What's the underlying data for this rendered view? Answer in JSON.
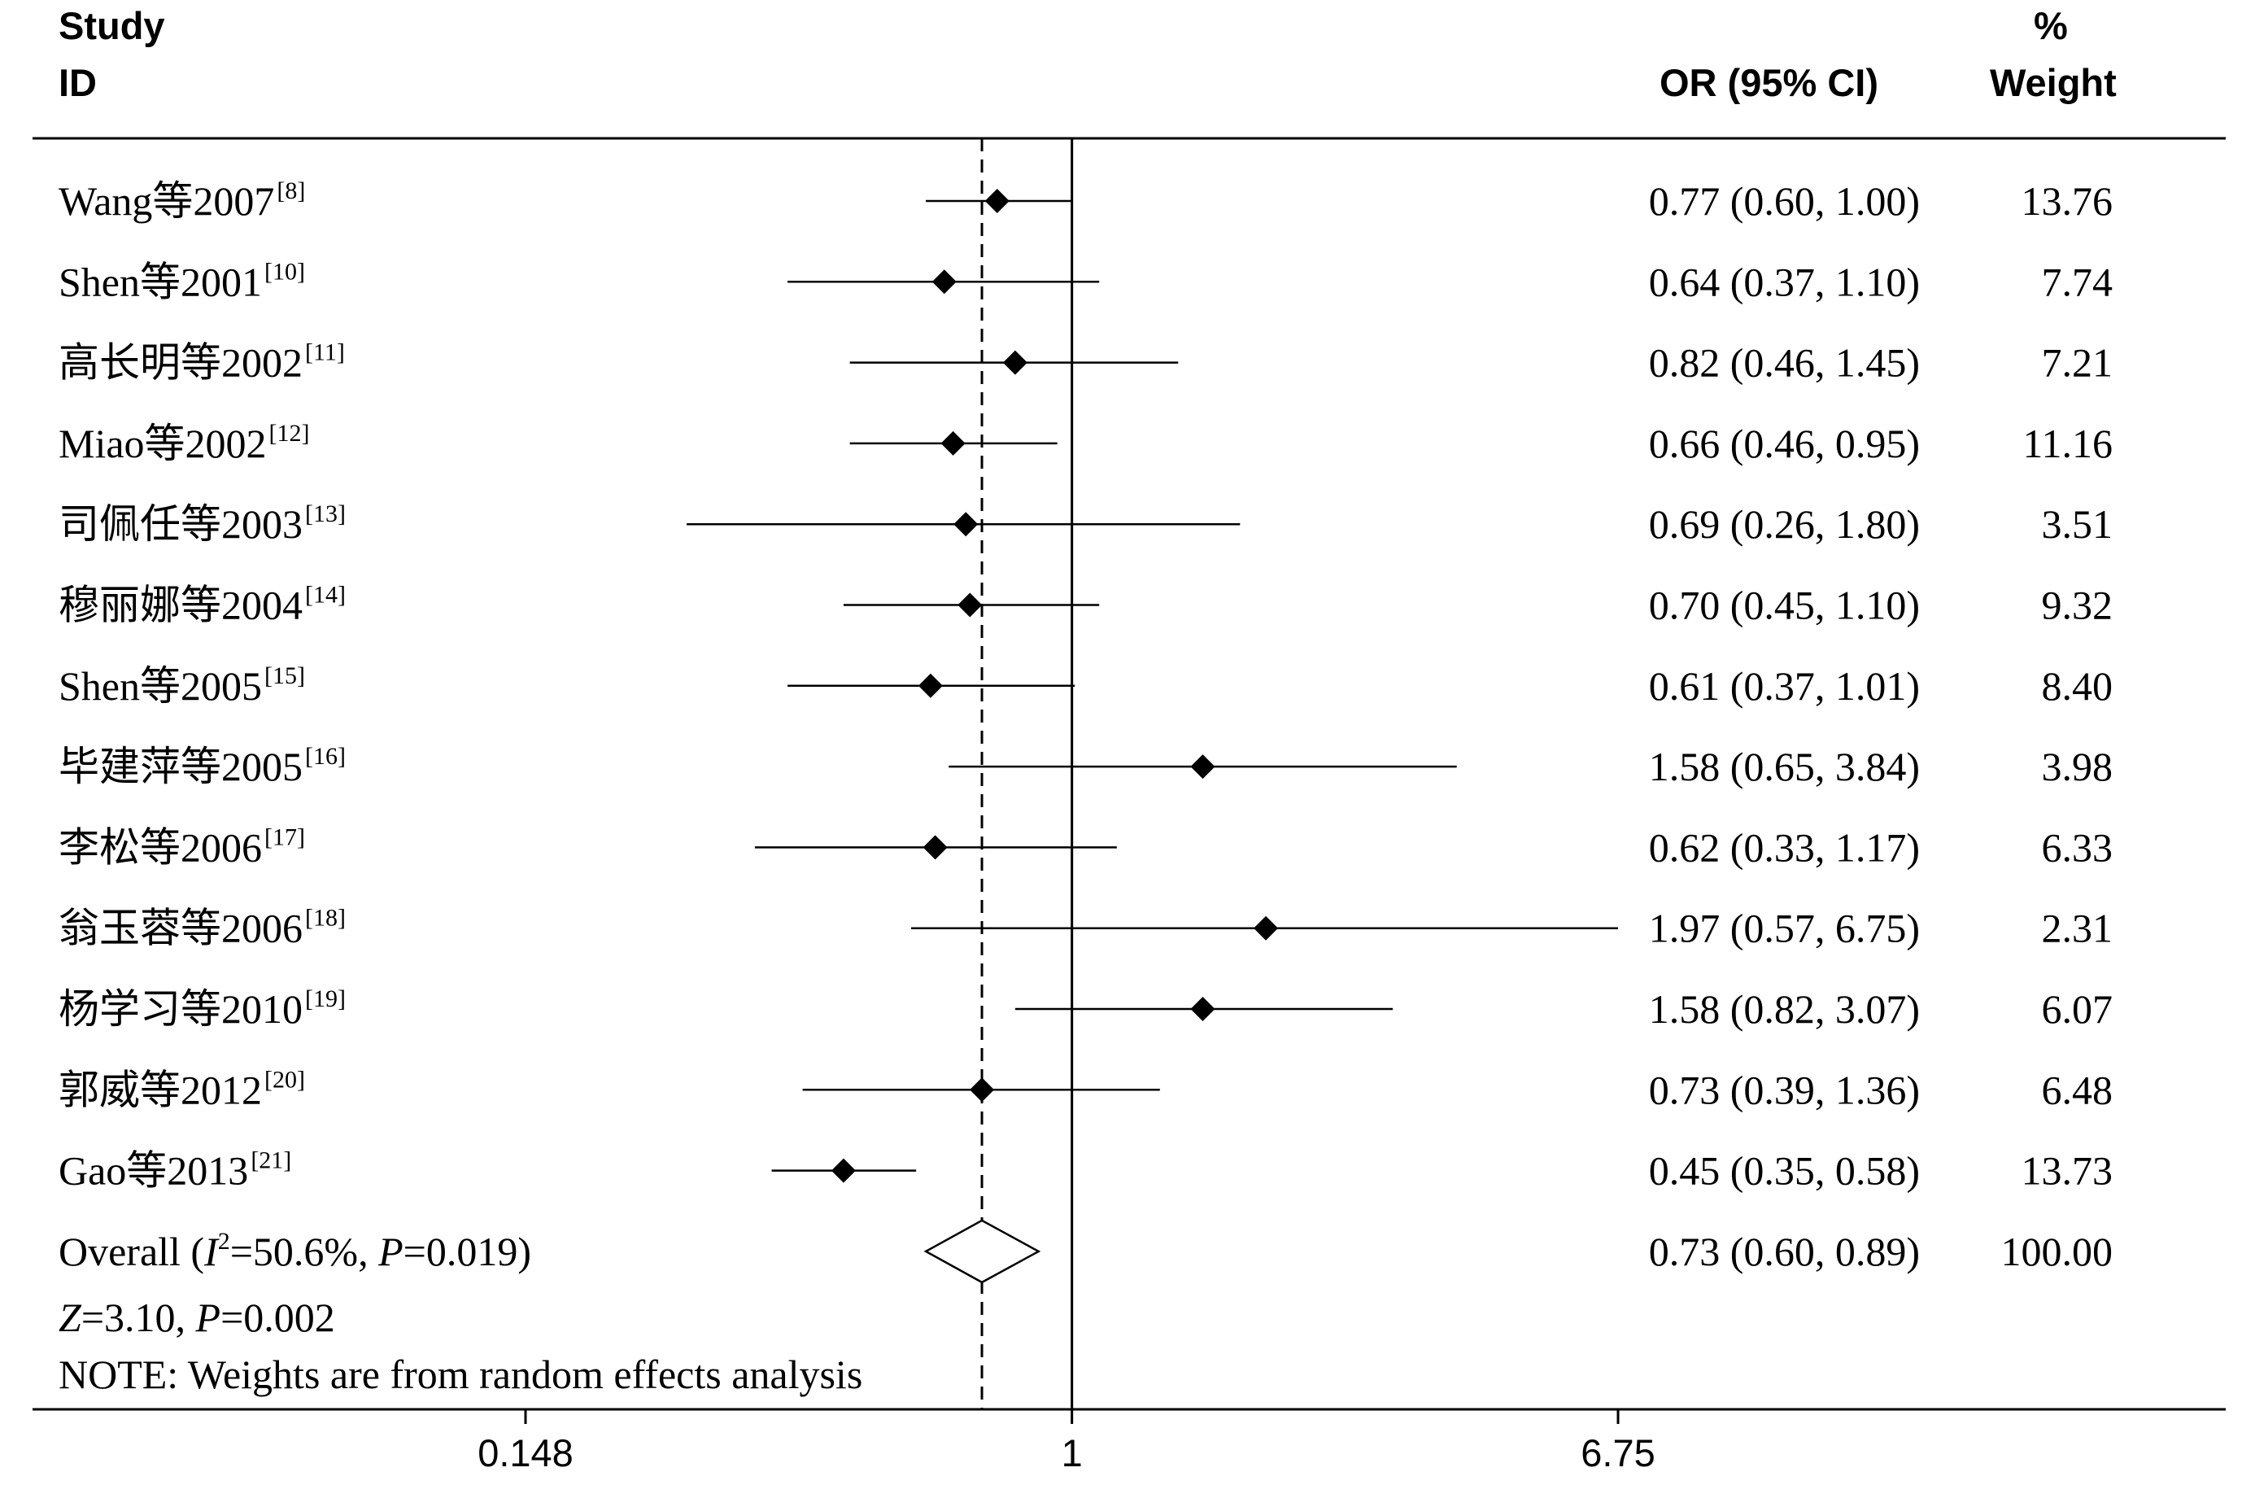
{
  "header": {
    "study_line1": "Study",
    "study_line2": "ID",
    "or_col": "OR (95% CI)",
    "weight_line1": "%",
    "weight_line2": "Weight"
  },
  "chart_data": {
    "type": "forest",
    "scale": "log",
    "xlim": [
      0.148,
      6.75
    ],
    "xticks": [
      {
        "value": 0.148,
        "label": "0.148"
      },
      {
        "value": 1,
        "label": "1"
      },
      {
        "value": 6.75,
        "label": "6.75"
      }
    ],
    "null_line": 1,
    "overall_line": 0.73,
    "studies": [
      {
        "name": "Wang等2007",
        "ref": "[8]",
        "or": 0.77,
        "lo": 0.6,
        "hi": 1.0,
        "ci_text": "0.77 (0.60, 1.00)",
        "weight": "13.76"
      },
      {
        "name": "Shen等2001",
        "ref": "[10]",
        "or": 0.64,
        "lo": 0.37,
        "hi": 1.1,
        "ci_text": "0.64 (0.37, 1.10)",
        "weight": "7.74"
      },
      {
        "name": "高长明等2002",
        "ref": "[11]",
        "or": 0.82,
        "lo": 0.46,
        "hi": 1.45,
        "ci_text": "0.82 (0.46, 1.45)",
        "weight": "7.21"
      },
      {
        "name": "Miao等2002",
        "ref": "[12]",
        "or": 0.66,
        "lo": 0.46,
        "hi": 0.95,
        "ci_text": "0.66 (0.46, 0.95)",
        "weight": "11.16"
      },
      {
        "name": "司佩任等2003",
        "ref": "[13]",
        "or": 0.69,
        "lo": 0.26,
        "hi": 1.8,
        "ci_text": "0.69 (0.26, 1.80)",
        "weight": "3.51"
      },
      {
        "name": "穆丽娜等2004",
        "ref": "[14]",
        "or": 0.7,
        "lo": 0.45,
        "hi": 1.1,
        "ci_text": "0.70 (0.45, 1.10)",
        "weight": "9.32"
      },
      {
        "name": "Shen等2005",
        "ref": "[15]",
        "or": 0.61,
        "lo": 0.37,
        "hi": 1.01,
        "ci_text": "0.61 (0.37, 1.01)",
        "weight": "8.40"
      },
      {
        "name": "毕建萍等2005",
        "ref": "[16]",
        "or": 1.58,
        "lo": 0.65,
        "hi": 3.84,
        "ci_text": "1.58 (0.65, 3.84)",
        "weight": "3.98"
      },
      {
        "name": "李松等2006",
        "ref": "[17]",
        "or": 0.62,
        "lo": 0.33,
        "hi": 1.17,
        "ci_text": "0.62 (0.33, 1.17)",
        "weight": "6.33"
      },
      {
        "name": "翁玉蓉等2006",
        "ref": "[18]",
        "or": 1.97,
        "lo": 0.57,
        "hi": 6.75,
        "ci_text": "1.97 (0.57, 6.75)",
        "weight": "2.31"
      },
      {
        "name": "杨学习等2010",
        "ref": "[19]",
        "or": 1.58,
        "lo": 0.82,
        "hi": 3.07,
        "ci_text": "1.58 (0.82, 3.07)",
        "weight": "6.07"
      },
      {
        "name": "郭威等2012",
        "ref": "[20]",
        "or": 0.73,
        "lo": 0.39,
        "hi": 1.36,
        "ci_text": "0.73 (0.39, 1.36)",
        "weight": "6.48"
      },
      {
        "name": "Gao等2013",
        "ref": "[21]",
        "or": 0.45,
        "lo": 0.35,
        "hi": 0.58,
        "ci_text": "0.45 (0.35, 0.58)",
        "weight": "13.73"
      }
    ],
    "overall": {
      "label_prefix": "Overall  (",
      "i2_symbol": "I",
      "i2_sup": "2",
      "i2_value": "=50.6%, ",
      "p_symbol": "P",
      "p_value": "=0.019)",
      "or": 0.73,
      "lo": 0.6,
      "hi": 0.89,
      "ci_text": "0.73 (0.60, 0.89)",
      "weight": "100.00"
    },
    "test": {
      "z_symbol": "Z",
      "z_value": "=3.10, ",
      "p_symbol": "P",
      "p_value": "=0.002"
    },
    "note": "NOTE: Weights are from random effects analysis"
  }
}
